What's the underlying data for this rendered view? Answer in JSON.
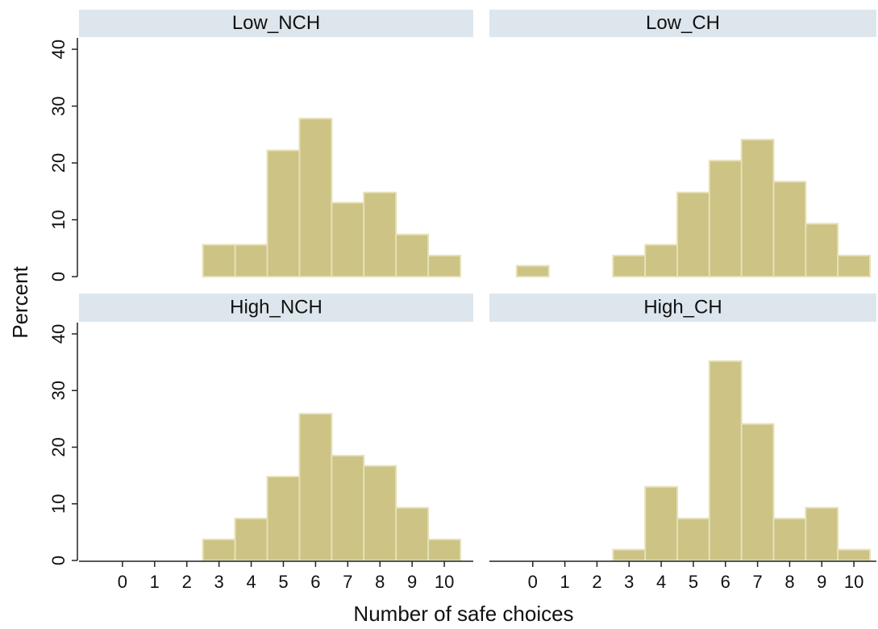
{
  "axis_titles": {
    "y_label": "Percent",
    "x_label": "Number of safe choices"
  },
  "chart_data": [
    {
      "type": "histogram",
      "title": "Low_NCH",
      "color": "#ccc384",
      "bins": [
        -0.5,
        0.5,
        1.5,
        2.5,
        3.5,
        4.5,
        5.5,
        6.5,
        7.5,
        8.5,
        9.5,
        10.5
      ],
      "values": [
        0,
        0,
        0,
        5.6,
        5.6,
        22.2,
        27.8,
        13,
        14.8,
        7.4,
        3.7
      ],
      "xlim": [
        -1.35,
        10.9
      ],
      "ylim": [
        0,
        42
      ],
      "yticks": [
        0,
        10,
        20,
        30,
        40
      ]
    },
    {
      "type": "histogram",
      "title": "Low_CH",
      "color": "#ccc384",
      "bins": [
        -0.5,
        0.5,
        1.5,
        2.5,
        3.5,
        4.5,
        5.5,
        6.5,
        7.5,
        8.5,
        9.5,
        10.5
      ],
      "values": [
        1.9,
        0,
        0,
        3.7,
        5.6,
        14.8,
        20.4,
        24.1,
        16.7,
        9.3,
        3.7
      ],
      "xlim": [
        -1.35,
        10.7
      ],
      "ylim": [
        0,
        42
      ]
    },
    {
      "type": "histogram",
      "title": "High_NCH",
      "color": "#ccc384",
      "bins": [
        -0.5,
        0.5,
        1.5,
        2.5,
        3.5,
        4.5,
        5.5,
        6.5,
        7.5,
        8.5,
        9.5,
        10.5
      ],
      "values": [
        0,
        0,
        0,
        3.7,
        7.4,
        14.8,
        25.9,
        18.5,
        16.7,
        9.3,
        3.7
      ],
      "xlim": [
        -1.35,
        10.9
      ],
      "ylim": [
        0,
        42
      ],
      "yticks": [
        0,
        10,
        20,
        30,
        40
      ],
      "xticks": [
        0,
        1,
        2,
        3,
        4,
        5,
        6,
        7,
        8,
        9,
        10
      ]
    },
    {
      "type": "histogram",
      "title": "High_CH",
      "color": "#ccc384",
      "bins": [
        -0.5,
        0.5,
        1.5,
        2.5,
        3.5,
        4.5,
        5.5,
        6.5,
        7.5,
        8.5,
        9.5,
        10.5
      ],
      "values": [
        0,
        0,
        0,
        1.9,
        13,
        7.4,
        35.2,
        24.1,
        7.4,
        9.3,
        1.9
      ],
      "xlim": [
        -1.35,
        10.7
      ],
      "ylim": [
        0,
        42
      ],
      "xticks": [
        0,
        1,
        2,
        3,
        4,
        5,
        6,
        7,
        8,
        9,
        10
      ]
    }
  ]
}
